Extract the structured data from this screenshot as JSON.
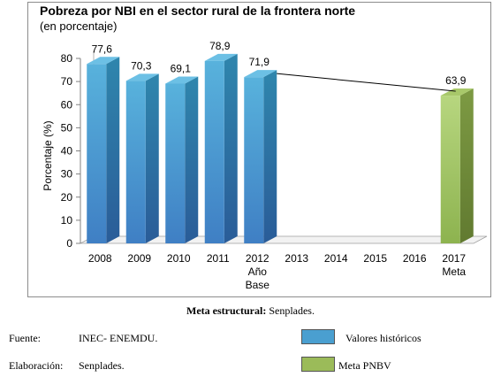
{
  "chart_data": {
    "type": "bar",
    "title": "Pobreza por NBI en el sector rural de la frontera norte",
    "subtitle": "(en porcentaje)",
    "ylabel": "Porcentaje (%)",
    "xlabel": "",
    "ylim": [
      0,
      80
    ],
    "yticks": [
      "0",
      "10",
      "20",
      "30",
      "40",
      "50",
      "60",
      "70",
      "80"
    ],
    "categories": [
      "2008",
      "2009",
      "2010",
      "2011",
      "2012",
      "2013",
      "2014",
      "2015",
      "2016",
      "2017"
    ],
    "category_sublabels": [
      "",
      "",
      "",
      "",
      "Año\nBase",
      "",
      "",
      "",
      "",
      "Meta"
    ],
    "series": [
      {
        "name": "Valores históricos",
        "color": "#4a9fd0",
        "values": [
          77.6,
          70.3,
          69.1,
          78.9,
          71.9,
          null,
          null,
          null,
          null,
          null
        ]
      },
      {
        "name": "Meta PNBV",
        "color": "#9bbb59",
        "values": [
          null,
          null,
          null,
          null,
          null,
          null,
          null,
          null,
          null,
          63.9
        ]
      }
    ],
    "data_labels": [
      "77,6",
      "70,3",
      "69,1",
      "78,9",
      "71,9",
      "",
      "",
      "",
      "",
      "63,9"
    ],
    "trend_line": {
      "from": "2012",
      "to": "2017"
    },
    "grid": false,
    "legend_position": "bottom-right"
  },
  "footer": {
    "meta_label": "Meta estructural:",
    "meta_value": " Senplades.",
    "fuente_label": "Fuente:",
    "fuente_value": "INEC- ENEMDU.",
    "elaboracion_label": "Elaboración:",
    "elaboracion_value": "Senplades.",
    "legend_hist": "Valores históricos",
    "legend_meta": "Meta PNBV"
  }
}
